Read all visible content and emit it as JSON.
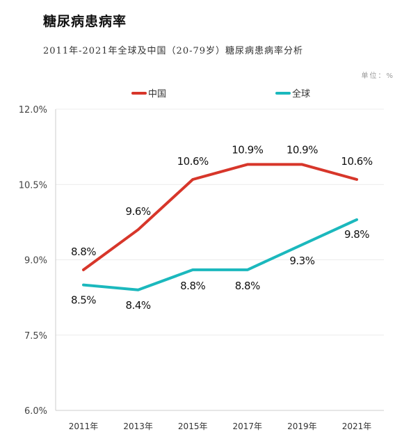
{
  "header": {
    "title": "糖尿病患病率",
    "subtitle": "2011年-2021年全球及中国（20-79岁）糖尿病患病率分析",
    "unit": "单位：%"
  },
  "chart_data": {
    "type": "line",
    "title": "糖尿病患病率",
    "subtitle": "2011年-2021年全球及中国（20-79岁）糖尿病患病率分析",
    "unit": "单位：%",
    "categories": [
      "2011年",
      "2013年",
      "2015年",
      "2017年",
      "2019年",
      "2021年"
    ],
    "series": [
      {
        "name": "中国",
        "color": "#d7362a",
        "values": [
          8.8,
          9.6,
          10.6,
          10.9,
          10.9,
          10.6
        ],
        "labels": [
          "8.8%",
          "9.6%",
          "10.6%",
          "10.9%",
          "10.9%",
          "10.6%"
        ]
      },
      {
        "name": "全球",
        "color": "#1bb8bd",
        "values": [
          8.5,
          8.4,
          8.8,
          8.8,
          9.3,
          9.8
        ],
        "labels": [
          "8.5%",
          "8.4%",
          "8.8%",
          "8.8%",
          "9.3%",
          "9.8%"
        ]
      }
    ],
    "ylim": [
      6.0,
      12.0
    ],
    "yticks": [
      6.0,
      7.5,
      9.0,
      10.5,
      12.0
    ],
    "ytick_labels": [
      "6.0%",
      "7.5%",
      "9.0%",
      "10.5%",
      "12.0%"
    ],
    "grid": true,
    "legend": "top"
  }
}
